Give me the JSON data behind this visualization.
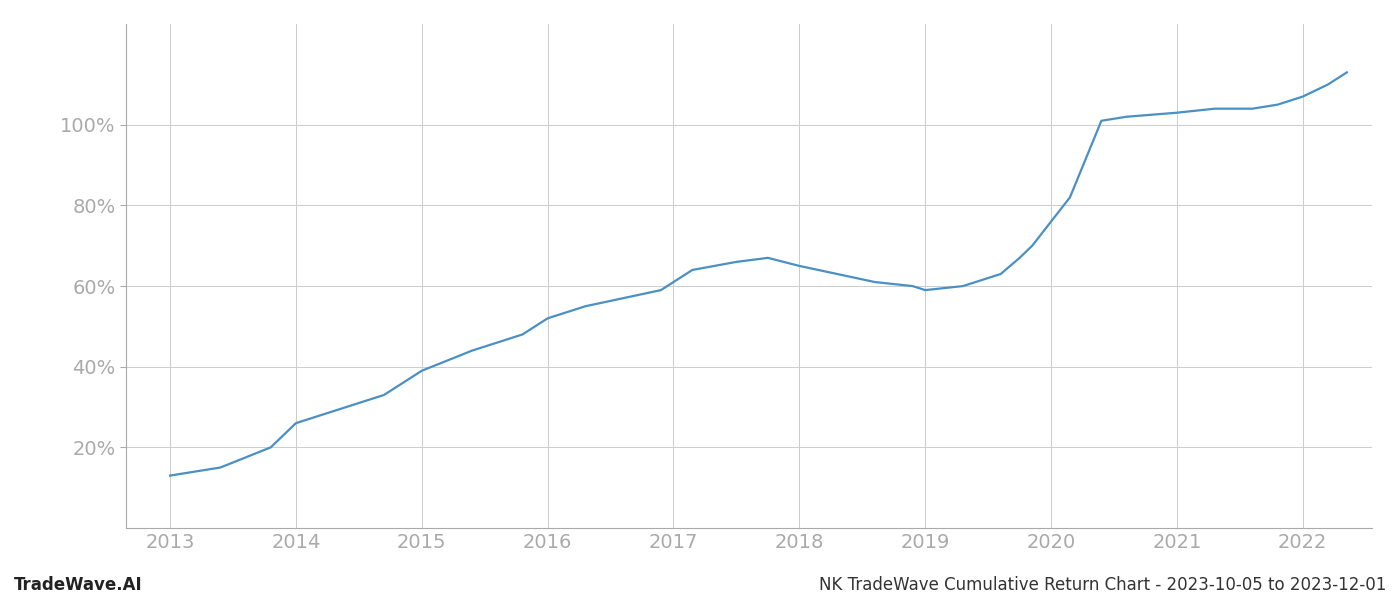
{
  "x_years": [
    2013.0,
    2013.4,
    2013.8,
    2014.0,
    2014.3,
    2014.7,
    2015.0,
    2015.4,
    2015.8,
    2016.0,
    2016.3,
    2016.6,
    2016.9,
    2017.0,
    2017.15,
    2017.5,
    2017.75,
    2018.0,
    2018.3,
    2018.6,
    2018.9,
    2019.0,
    2019.3,
    2019.6,
    2019.75,
    2019.85,
    2019.95,
    2020.05,
    2020.15,
    2020.4,
    2020.6,
    2021.0,
    2021.3,
    2021.6,
    2021.8,
    2022.0,
    2022.2,
    2022.35
  ],
  "y_values": [
    13,
    15,
    20,
    26,
    29,
    33,
    39,
    44,
    48,
    52,
    55,
    57,
    59,
    61,
    64,
    66,
    67,
    65,
    63,
    61,
    60,
    59,
    60,
    63,
    67,
    70,
    74,
    78,
    82,
    101,
    102,
    103,
    104,
    104,
    105,
    107,
    110,
    113
  ],
  "line_color": "#4a90c4",
  "background_color": "#ffffff",
  "grid_color": "#cccccc",
  "tick_color": "#aaaaaa",
  "label_color": "#333333",
  "footer_left": "TradeWave.AI",
  "footer_right": "NK TradeWave Cumulative Return Chart - 2023-10-05 to 2023-12-01",
  "xlim": [
    2012.65,
    2022.55
  ],
  "ylim": [
    0,
    125
  ],
  "yticks": [
    20,
    40,
    60,
    80,
    100
  ],
  "xticks": [
    2013,
    2014,
    2015,
    2016,
    2017,
    2018,
    2019,
    2020,
    2021,
    2022
  ],
  "line_width": 1.6,
  "tick_fontsize": 14,
  "footer_fontsize": 12
}
